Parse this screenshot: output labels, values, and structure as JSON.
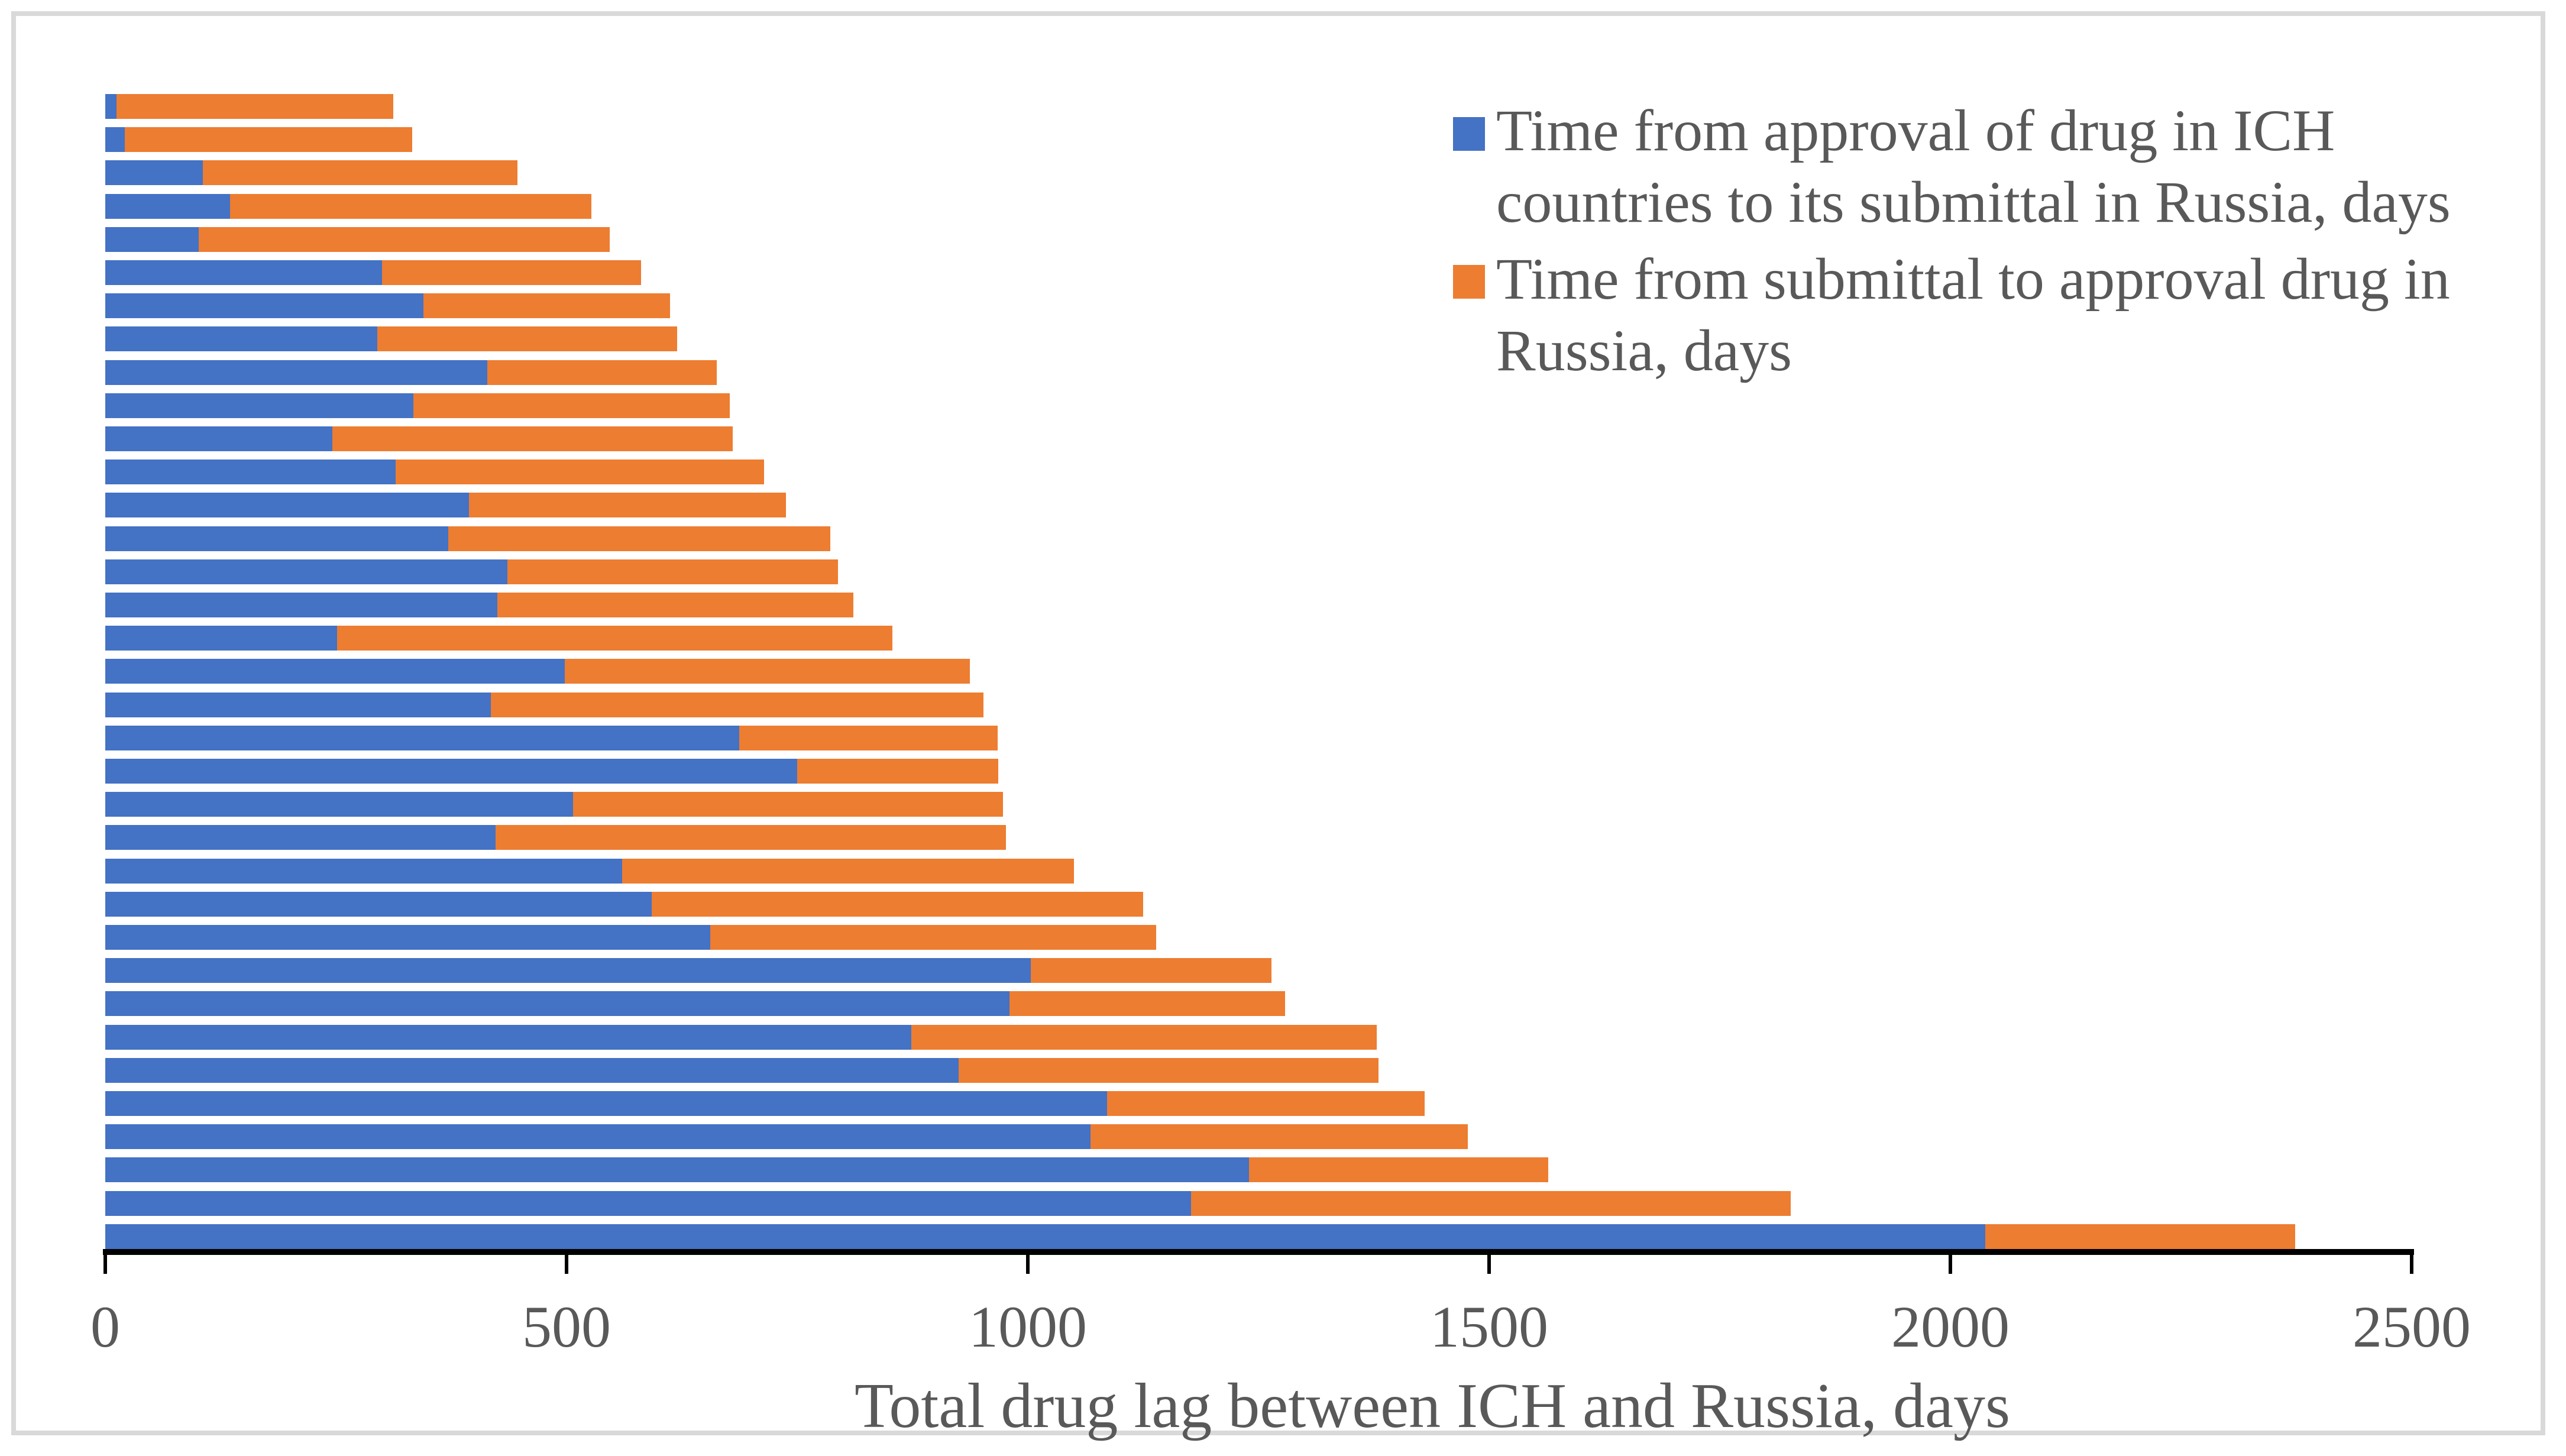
{
  "figure": {
    "background_color": "#FFFFFF",
    "border_color": "#D9D9D9",
    "text_color": "#595959",
    "axis_line_color": "#000000"
  },
  "legend": {
    "position": "top-right-inside",
    "entries": [
      {
        "swatch_color": "#4472C4",
        "lines": [
          "Time from approval of drug in ICH",
          "countries to its submittal in Russia, days"
        ]
      },
      {
        "swatch_color": "#ED7D31",
        "lines": [
          "Time from submittal to approval drug in",
          "Russia, days"
        ]
      }
    ]
  },
  "chart_data": {
    "type": "bar",
    "orientation": "horizontal_stacked",
    "title": "",
    "xlabel": "Total drug lag between ICH and Russia, days",
    "ylabel": "",
    "xlim": [
      0,
      2500
    ],
    "xticks": [
      0,
      500,
      1000,
      1500,
      2000,
      2500
    ],
    "grid": false,
    "bars_sorted": "ascending total from top to bottom, no category labels shown",
    "series": [
      {
        "name": "Time from approval of drug in ICH countries to its submittal in Russia, days",
        "color": "#4472C4",
        "values": [
          12,
          21,
          106,
          135,
          101,
          300,
          345,
          295,
          414,
          334,
          246,
          315,
          394,
          372,
          436,
          425,
          251,
          498,
          418,
          687,
          750,
          507,
          423,
          560,
          592,
          656,
          1003,
          980,
          874,
          925,
          1086,
          1068,
          1240,
          1177,
          2038
        ]
      },
      {
        "name": "Time from submittal to approval drug in Russia, days",
        "color": "#ED7D31",
        "values": [
          300,
          312,
          341,
          392,
          446,
          281,
          267,
          325,
          249,
          343,
          434,
          399,
          344,
          414,
          358,
          386,
          602,
          439,
          534,
          280,
          218,
          466,
          553,
          490,
          533,
          483,
          261,
          299,
          504,
          455,
          344,
          409,
          324,
          650,
          336
        ]
      }
    ]
  }
}
